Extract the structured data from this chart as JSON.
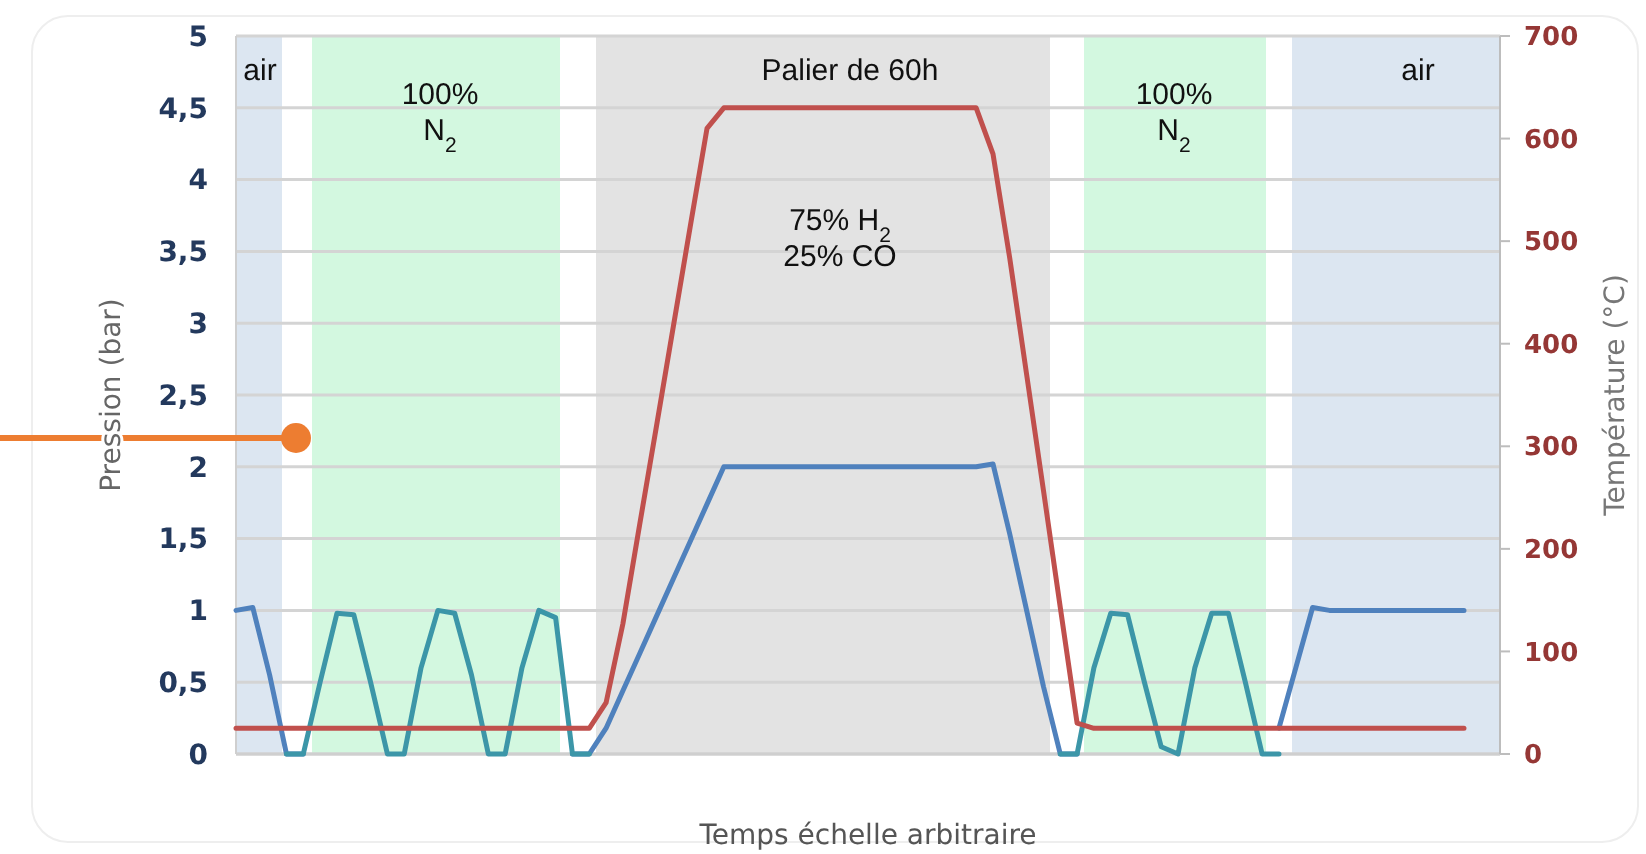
{
  "chart_data": {
    "type": "line",
    "xlabel": "Temps échelle arbitraire",
    "ylabel": "Pression (bar)",
    "y2label": "Température (°C)",
    "categories": [
      null,
      null,
      null,
      null,
      null,
      null,
      null,
      null,
      null,
      null,
      null,
      null,
      null,
      null,
      null,
      null,
      null,
      null,
      null,
      null,
      null,
      null,
      null,
      null,
      null,
      null,
      null,
      null,
      null,
      null,
      null,
      null,
      null,
      null,
      null,
      null,
      null,
      null,
      null,
      null,
      null,
      null,
      null,
      null,
      null,
      null,
      null,
      null,
      null,
      null,
      null,
      null,
      null,
      null,
      null,
      null,
      null,
      null,
      null,
      null,
      null,
      null,
      null,
      null,
      null,
      null,
      null,
      null,
      null,
      null,
      null,
      null,
      null,
      null
    ],
    "ylim": [
      0,
      5
    ],
    "yticks": [
      0,
      {
        "value": 0.5,
        "label": "0,5"
      },
      1,
      {
        "value": 1.5,
        "label": "1,5"
      },
      2,
      {
        "value": 2.5,
        "label": "2,5"
      },
      3,
      {
        "value": 3.5,
        "label": "3,5"
      },
      4,
      {
        "value": 4.5,
        "label": "4,5"
      },
      5
    ],
    "y2lim": [
      0,
      700
    ],
    "y2ticks": [
      0,
      100,
      200,
      300,
      400,
      500,
      600,
      700
    ],
    "grid": "y",
    "marker": "none",
    "line_style": "solid",
    "annotations": [
      "air",
      "100%\nN$_{2}$",
      "Palier de 60h",
      "75% H$_{2}$\n25% CO",
      "100%\nN$_{2}$",
      "air"
    ],
    "series": [
      {
        "color": "#4f81bd",
        "values": [
          1.0,
          1.02,
          0.55,
          0,
          0,
          null,
          null,
          null,
          null,
          null,
          null,
          null,
          null,
          null,
          null,
          null,
          null,
          null,
          null,
          null,
          0,
          0,
          0.18,
          0.44,
          0.7,
          0.96,
          1.22,
          1.48,
          1.74,
          2.0,
          2.0,
          2.0,
          2.0,
          2.0,
          2.0,
          2.0,
          2.0,
          2.0,
          2.0,
          2.0,
          2.0,
          2.0,
          2.0,
          2.0,
          2.0,
          2.02,
          1.53,
          1.0,
          0.47,
          0,
          0,
          null,
          null,
          null,
          null,
          null,
          null,
          null,
          null,
          null,
          null,
          null,
          0.18,
          0.6,
          1.02,
          1.0,
          1.0,
          1.0,
          1.0,
          1.0,
          1.0,
          1.0,
          1.0,
          1.0
        ]
      },
      {
        "color": "#3c96a8",
        "values": [
          null,
          null,
          null,
          0,
          0,
          0.5,
          0.98,
          0.97,
          0.5,
          0,
          0,
          0.6,
          1.0,
          0.98,
          0.55,
          0,
          0,
          0.6,
          1.0,
          0.95,
          0,
          0,
          null,
          null,
          null,
          null,
          null,
          null,
          null,
          null,
          null,
          null,
          null,
          null,
          null,
          null,
          null,
          null,
          null,
          null,
          null,
          null,
          null,
          null,
          null,
          null,
          null,
          null,
          null,
          0,
          0,
          0.6,
          0.98,
          0.97,
          0.5,
          0.05,
          0,
          0.6,
          0.98,
          0.98,
          0.5,
          0,
          0,
          null,
          null,
          null,
          null,
          null,
          null,
          null,
          null,
          null,
          null,
          null
        ]
      },
      {
        "color": "#c0504d",
        "axis": "y2",
        "values": [
          25,
          25,
          25,
          25,
          25,
          25,
          25,
          25,
          25,
          25,
          25,
          25,
          25,
          25,
          25,
          25,
          25,
          25,
          25,
          25,
          25,
          25,
          50,
          127,
          224,
          320,
          417,
          514,
          610,
          630,
          630,
          630,
          630,
          630,
          630,
          630,
          630,
          630,
          630,
          630,
          630,
          630,
          630,
          630,
          630,
          585,
          483,
          370,
          257,
          143,
          30,
          25,
          25,
          25,
          25,
          25,
          25,
          25,
          25,
          25,
          25,
          25,
          25,
          25,
          25,
          25,
          25,
          25,
          25,
          25,
          25,
          25,
          25,
          25
        ]
      }
    ]
  }
}
